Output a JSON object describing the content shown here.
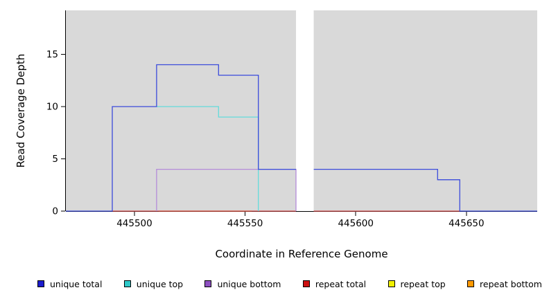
{
  "chart_data": {
    "type": "line",
    "subtype": "step-coverage-plot",
    "title": "",
    "xlabel": "Coordinate in Reference Genome",
    "ylabel": "Read Coverage Depth",
    "xlim": [
      445469,
      445682
    ],
    "ylim": [
      0,
      19.2
    ],
    "x_ticks": [
      445500,
      445550,
      445600,
      445650
    ],
    "y_ticks": [
      0,
      5,
      10,
      15
    ],
    "grid": false,
    "legend_position": "bottom",
    "background": "#d9d9d9",
    "gap_region": {
      "x_start": 445573,
      "x_end": 445581
    },
    "series": [
      {
        "name": "unique total",
        "color": "#3b4bdb",
        "swatch_color": "#1c1ccd",
        "segments": [
          [
            [
              445469,
              0
            ],
            [
              445490,
              0
            ],
            [
              445490,
              10
            ],
            [
              445510,
              10
            ],
            [
              445510,
              14
            ],
            [
              445538,
              14
            ],
            [
              445538,
              13
            ],
            [
              445556,
              13
            ],
            [
              445556,
              4
            ],
            [
              445573,
              4
            ]
          ],
          [
            [
              445581,
              4
            ],
            [
              445637,
              4
            ],
            [
              445637,
              3
            ],
            [
              445647,
              3
            ],
            [
              445647,
              0
            ],
            [
              445682,
              0
            ]
          ]
        ]
      },
      {
        "name": "unique top",
        "color": "#63dbdb",
        "swatch_color": "#2fc9c9",
        "segments": [
          [
            [
              445510,
              10
            ],
            [
              445538,
              10
            ],
            [
              445538,
              9
            ],
            [
              445556,
              9
            ],
            [
              445556,
              0
            ]
          ]
        ]
      },
      {
        "name": "unique bottom",
        "color": "#b48bd9",
        "swatch_color": "#8d4fc0",
        "segments": [
          [
            [
              445510,
              0
            ],
            [
              445510,
              4
            ],
            [
              445573,
              4
            ],
            [
              445573,
              0
            ]
          ]
        ]
      },
      {
        "name": "repeat total",
        "color": "#d44a4a",
        "swatch_color": "#cc1111",
        "segments": [
          [
            [
              445490,
              0
            ],
            [
              445573,
              0
            ]
          ],
          [
            [
              445581,
              0
            ],
            [
              445647,
              0
            ]
          ]
        ]
      },
      {
        "name": "repeat top",
        "color": "#f0f000",
        "swatch_color": "#f0f000",
        "segments": []
      },
      {
        "name": "repeat bottom",
        "color": "#ffa033",
        "swatch_color": "#ff9900",
        "segments": [
          [
            [
              445511,
              0
            ],
            [
              445553,
              0
            ]
          ]
        ]
      }
    ]
  }
}
